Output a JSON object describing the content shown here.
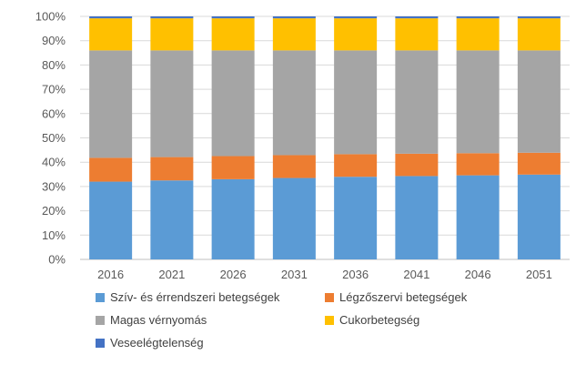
{
  "chart_data": {
    "type": "bar",
    "stacked": true,
    "percent": true,
    "categories": [
      "2016",
      "2021",
      "2026",
      "2031",
      "2036",
      "2041",
      "2046",
      "2051"
    ],
    "ylim": [
      0,
      100
    ],
    "yticks": [
      "0%",
      "10%",
      "20%",
      "30%",
      "40%",
      "50%",
      "60%",
      "70%",
      "80%",
      "90%",
      "100%"
    ],
    "grid": true,
    "legend_position": "bottom",
    "series": [
      {
        "name": "Szív- és érrendszeri betegségek",
        "color": "#5B9BD5",
        "values": [
          32,
          32.5,
          33,
          33.5,
          34,
          34.3,
          34.6,
          34.9
        ]
      },
      {
        "name": "Légzőszervi betegségek",
        "color": "#ED7D31",
        "values": [
          9.8,
          9.6,
          9.5,
          9.4,
          9.3,
          9.2,
          9.1,
          9.0
        ]
      },
      {
        "name": "Magas vérnyomás",
        "color": "#A5A5A5",
        "values": [
          44.2,
          43.9,
          43.5,
          43.1,
          42.7,
          42.5,
          42.3,
          42.1
        ]
      },
      {
        "name": "Cukorbetegség",
        "color": "#FFC000",
        "values": [
          13.2,
          13.2,
          13.2,
          13.2,
          13.2,
          13.2,
          13.2,
          13.2
        ]
      },
      {
        "name": "Veseelégtelenség",
        "color": "#4472C4",
        "values": [
          0.8,
          0.8,
          0.8,
          0.8,
          0.8,
          0.8,
          0.8,
          0.8
        ]
      }
    ]
  }
}
